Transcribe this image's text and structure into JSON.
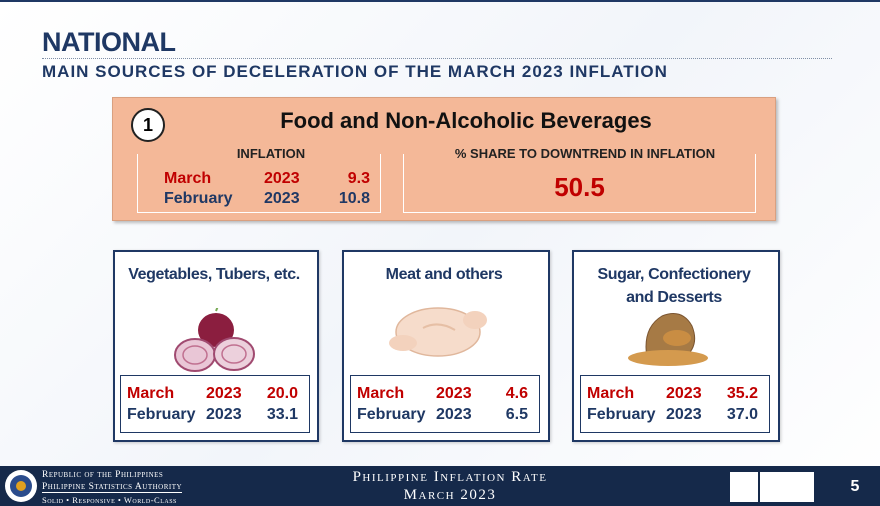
{
  "header": {
    "title": "NATIONAL",
    "subtitle": "MAIN SOURCES OF DECELERATION OF THE MARCH 2023 INFLATION"
  },
  "main": {
    "number": "1",
    "title": "Food and Non-Alcoholic Beverages",
    "inflation": {
      "label": "INFLATION",
      "rows": [
        {
          "month": "March",
          "year": "2023",
          "value": "9.3"
        },
        {
          "month": "February",
          "year": "2023",
          "value": "10.8"
        }
      ]
    },
    "share": {
      "label": "% SHARE TO DOWNTREND IN INFLATION",
      "value": "50.5"
    }
  },
  "cards": [
    {
      "title": "Vegetables, Tubers, etc.",
      "rows": [
        {
          "month": "March",
          "year": "2023",
          "value": "20.0"
        },
        {
          "month": "February",
          "year": "2023",
          "value": "33.1"
        }
      ]
    },
    {
      "title": "Meat and others",
      "rows": [
        {
          "month": "March",
          "year": "2023",
          "value": "4.6"
        },
        {
          "month": "February",
          "year": "2023",
          "value": "6.5"
        }
      ]
    },
    {
      "title": "Sugar, Confectionery and Desserts",
      "rows": [
        {
          "month": "March",
          "year": "2023",
          "value": "35.2"
        },
        {
          "month": "February",
          "year": "2023",
          "value": "37.0"
        }
      ]
    }
  ],
  "footer": {
    "agency_lines": [
      "Republic of the Philippines",
      "Philippine Statistics Authority",
      "Solid • Responsive • World-Class"
    ],
    "center_lines": [
      "Philippine Inflation Rate",
      "March 2023"
    ],
    "page": "5"
  }
}
